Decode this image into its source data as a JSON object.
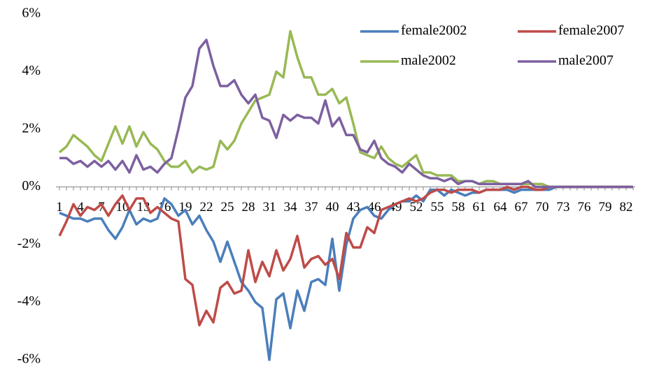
{
  "chart_data": {
    "type": "line",
    "categories": [
      "1",
      null,
      null,
      "4",
      null,
      null,
      "7",
      null,
      null,
      "10",
      null,
      null,
      "13",
      null,
      null,
      "16",
      null,
      null,
      "19",
      null,
      null,
      "22",
      null,
      null,
      "25",
      null,
      null,
      "28",
      null,
      null,
      "31",
      null,
      null,
      "34",
      null,
      null,
      "37",
      null,
      null,
      "40",
      null,
      null,
      "43",
      null,
      null,
      "46",
      null,
      null,
      "49",
      null,
      null,
      "52",
      null,
      null,
      "55",
      null,
      null,
      "58",
      null,
      null,
      "61",
      null,
      null,
      "64",
      null,
      null,
      "67",
      null,
      null,
      "70",
      null,
      null,
      "73",
      null,
      null,
      "76",
      null,
      null,
      "79",
      null,
      null,
      "82",
      null
    ],
    "ylim": [
      -6,
      6
    ],
    "yticks": [
      {
        "value": -6,
        "label": "-6%"
      },
      {
        "value": -4,
        "label": "-4%"
      },
      {
        "value": -2,
        "label": "-2%"
      },
      {
        "value": 0,
        "label": "0%"
      },
      {
        "value": 2,
        "label": "2%"
      },
      {
        "value": 4,
        "label": "4%"
      },
      {
        "value": 6,
        "label": "6%"
      }
    ],
    "series": [
      {
        "name": "female2002",
        "color": "#4a7ebb",
        "values": [
          -0.9,
          -1.0,
          -1.1,
          -1.1,
          -1.2,
          -1.1,
          -1.1,
          -1.5,
          -1.8,
          -1.4,
          -0.8,
          -1.3,
          -1.1,
          -1.2,
          -1.1,
          -0.4,
          -0.6,
          -1.0,
          -0.8,
          -1.3,
          -1.0,
          -1.5,
          -1.9,
          -2.6,
          -1.9,
          -2.6,
          -3.3,
          -3.6,
          -4.0,
          -4.2,
          -6.0,
          -3.9,
          -3.7,
          -4.9,
          -3.6,
          -4.3,
          -3.3,
          -3.2,
          -3.4,
          -1.8,
          -3.6,
          -2.0,
          -1.1,
          -0.8,
          -0.7,
          -1.0,
          -1.1,
          -0.8,
          -0.6,
          -0.5,
          -0.5,
          -0.3,
          -0.5,
          -0.1,
          -0.1,
          -0.3,
          -0.1,
          -0.2,
          -0.3,
          -0.2,
          -0.2,
          -0.1,
          -0.1,
          -0.1,
          -0.1,
          -0.2,
          -0.1,
          -0.1,
          -0.1,
          -0.1,
          -0.1,
          0,
          0,
          0,
          0,
          0,
          0,
          0,
          0,
          0,
          0,
          0,
          0
        ]
      },
      {
        "name": "female2007",
        "color": "#be4b48",
        "values": [
          -1.7,
          -1.2,
          -0.6,
          -1.0,
          -0.7,
          -0.8,
          -0.6,
          -1.0,
          -0.6,
          -0.3,
          -0.8,
          -0.4,
          -0.4,
          -0.9,
          -0.7,
          -0.9,
          -1.1,
          -1.2,
          -3.2,
          -3.4,
          -4.8,
          -4.3,
          -4.7,
          -3.5,
          -3.3,
          -3.7,
          -3.6,
          -2.2,
          -3.3,
          -2.6,
          -3.1,
          -2.2,
          -2.9,
          -2.5,
          -1.7,
          -2.8,
          -2.5,
          -2.4,
          -2.7,
          -2.5,
          -3.2,
          -1.6,
          -2.1,
          -2.1,
          -1.4,
          -1.6,
          -0.8,
          -0.7,
          -0.6,
          -0.5,
          -0.4,
          -0.5,
          -0.4,
          -0.2,
          -0.1,
          -0.1,
          -0.2,
          -0.1,
          -0.1,
          -0.1,
          -0.2,
          -0.1,
          -0.1,
          -0.1,
          0,
          -0.1,
          0,
          0,
          -0.1,
          -0.1,
          0,
          0,
          0,
          0,
          0,
          0,
          0,
          0,
          0,
          0,
          0,
          0,
          0
        ]
      },
      {
        "name": "male2002",
        "color": "#98b954",
        "values": [
          1.2,
          1.4,
          1.8,
          1.6,
          1.4,
          1.1,
          0.9,
          1.5,
          2.1,
          1.5,
          2.1,
          1.4,
          1.9,
          1.5,
          1.3,
          0.9,
          0.7,
          0.7,
          0.9,
          0.5,
          0.7,
          0.6,
          0.7,
          1.6,
          1.3,
          1.6,
          2.2,
          2.6,
          3.0,
          3.1,
          3.2,
          4.0,
          3.8,
          5.4,
          4.5,
          3.8,
          3.8,
          3.2,
          3.2,
          3.4,
          2.9,
          3.1,
          2.2,
          1.2,
          1.1,
          1.0,
          1.4,
          1.0,
          0.8,
          0.7,
          0.9,
          1.1,
          0.5,
          0.5,
          0.4,
          0.4,
          0.4,
          0.2,
          0.2,
          0.2,
          0.1,
          0.2,
          0.2,
          0.1,
          0.1,
          0.1,
          0.1,
          0.1,
          0.1,
          0.1,
          0,
          0,
          0,
          0,
          0,
          0,
          0,
          0,
          0,
          0,
          0,
          0,
          0
        ]
      },
      {
        "name": "male2007",
        "color": "#7d60a0",
        "values": [
          1.0,
          1.0,
          0.8,
          0.9,
          0.7,
          0.9,
          0.7,
          0.9,
          0.6,
          0.9,
          0.5,
          1.1,
          0.6,
          0.7,
          0.5,
          0.8,
          1.0,
          2.0,
          3.1,
          3.5,
          4.8,
          5.1,
          4.2,
          3.5,
          3.5,
          3.7,
          3.2,
          2.9,
          3.2,
          2.4,
          2.3,
          1.7,
          2.5,
          2.3,
          2.5,
          2.4,
          2.4,
          2.2,
          3.0,
          2.1,
          2.4,
          1.8,
          1.8,
          1.3,
          1.2,
          1.6,
          1.0,
          0.8,
          0.7,
          0.5,
          0.8,
          0.6,
          0.4,
          0.3,
          0.3,
          0.2,
          0.3,
          0.1,
          0.2,
          0.2,
          0.1,
          0.1,
          0.1,
          0.1,
          0.1,
          0.1,
          0.1,
          0.2,
          0,
          0,
          0,
          0,
          0,
          0,
          0,
          0,
          0,
          0,
          0,
          0,
          0,
          0,
          0
        ]
      }
    ]
  }
}
